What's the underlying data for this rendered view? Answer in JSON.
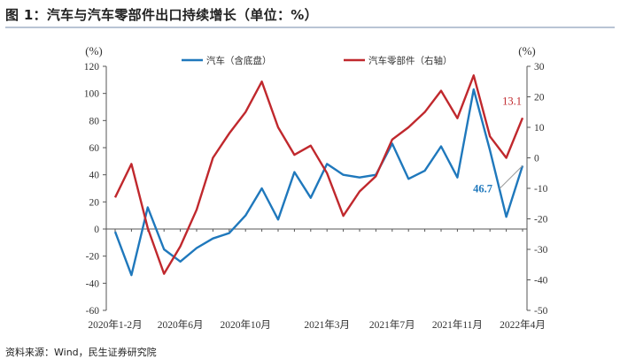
{
  "title": "图 1：汽车与汽车零部件出口持续增长（单位：%）",
  "source": "资料来源：Wind，民生证券研究院",
  "chart_data": {
    "type": "line",
    "title": "图 1：汽车与汽车零部件出口持续增长（单位：%）",
    "left_unit": "(%)",
    "right_unit": "(%)",
    "ylim_left": [
      -60,
      120
    ],
    "ylim_right": [
      -50,
      30
    ],
    "yticks_left": [
      -60,
      -40,
      -20,
      0,
      20,
      40,
      60,
      80,
      100,
      120
    ],
    "yticks_right": [
      -50,
      -40,
      -30,
      -20,
      -10,
      0,
      10,
      20,
      30
    ],
    "x_tick_labels": [
      {
        "i": 0,
        "label": "2020年1-2月"
      },
      {
        "i": 4,
        "label": "2020年6月"
      },
      {
        "i": 8,
        "label": "2020年10月"
      },
      {
        "i": 13,
        "label": "2021年3月"
      },
      {
        "i": 17,
        "label": "2021年7月"
      },
      {
        "i": 21,
        "label": "2021年11月"
      },
      {
        "i": 25,
        "label": "2022年4月"
      }
    ],
    "series": [
      {
        "name": "汽车（含底盘）",
        "axis": "left",
        "color": "#1f78bc",
        "values": [
          -2,
          -34,
          16,
          -15,
          -24,
          -14,
          -7,
          -3,
          10,
          30,
          7,
          42,
          23,
          48,
          40,
          38,
          40,
          63,
          37,
          43,
          61,
          38,
          103,
          58,
          9,
          46.7
        ]
      },
      {
        "name": "汽车零部件（右轴）",
        "axis": "right",
        "color": "#c0282d",
        "values": [
          -13,
          -2,
          -23,
          -38,
          -29,
          -17,
          0,
          8,
          15,
          25,
          10,
          1,
          4,
          -5,
          -19,
          -11,
          -6,
          6,
          10,
          15,
          22,
          13,
          27,
          7,
          0,
          13.1
        ]
      }
    ],
    "annotations": [
      {
        "text": "46.7",
        "series": 0,
        "i": 25,
        "color": "#1f78bc"
      },
      {
        "text": "13.1",
        "series": 1,
        "i": 25,
        "color": "#c0282d"
      }
    ]
  }
}
